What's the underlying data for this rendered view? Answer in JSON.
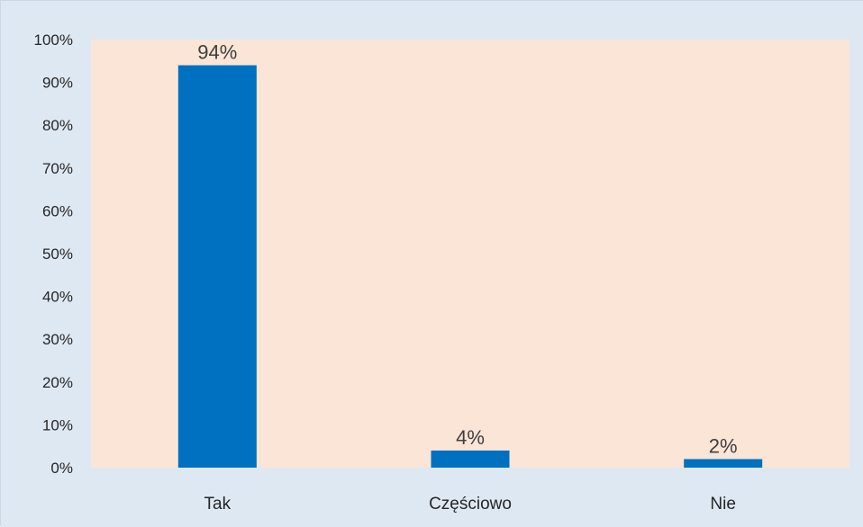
{
  "colors": {
    "outer_background": "#dee8f3",
    "plot_background": "#fbe5d6",
    "bar": "#0070c0",
    "text": "#262626",
    "data_label_text": "#3f3f3f"
  },
  "chart_data": {
    "type": "bar",
    "categories": [
      "Tak",
      "Częściowo",
      "Nie"
    ],
    "values": [
      94,
      4,
      2
    ],
    "data_labels": [
      "94%",
      "4%",
      "2%"
    ],
    "title": "",
    "xlabel": "",
    "ylabel": "",
    "ylim": [
      0,
      100
    ],
    "y_ticks": [
      0,
      10,
      20,
      30,
      40,
      50,
      60,
      70,
      80,
      90,
      100
    ],
    "y_tick_labels": [
      "0%",
      "10%",
      "20%",
      "30%",
      "40%",
      "50%",
      "60%",
      "70%",
      "80%",
      "90%",
      "100%"
    ],
    "grid": false,
    "legend": "none"
  }
}
